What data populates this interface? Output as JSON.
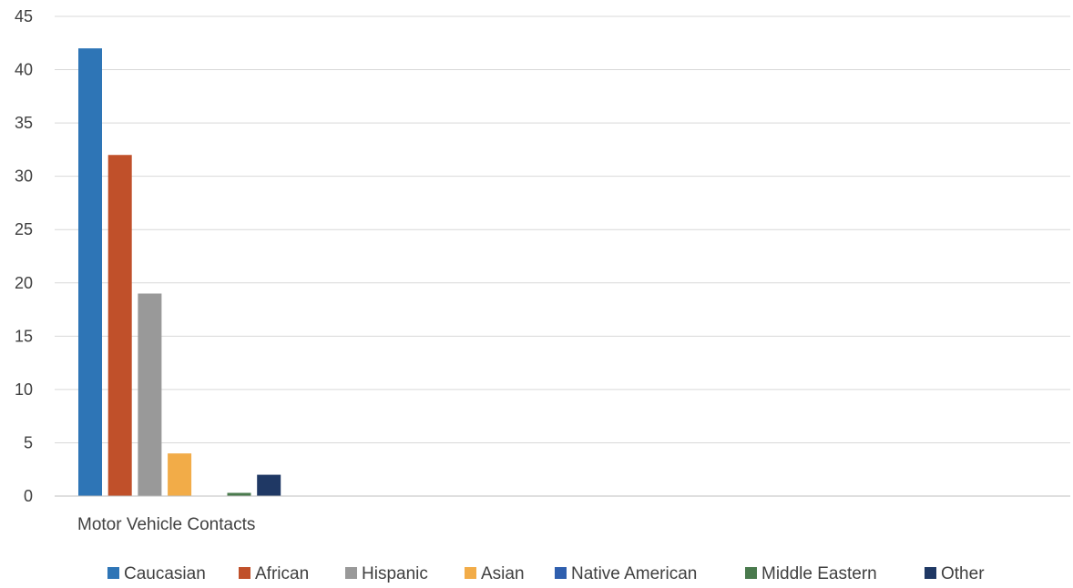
{
  "chart_data": {
    "type": "bar",
    "title": "",
    "xlabel": "",
    "ylabel": "",
    "categories": [
      "Motor Vehicle Contacts"
    ],
    "ylim": [
      0,
      45
    ],
    "y_ticks": [
      0,
      5,
      10,
      15,
      20,
      25,
      30,
      35,
      40,
      45
    ],
    "grid": true,
    "legend_position": "bottom",
    "series": [
      {
        "name": "Caucasian",
        "values": [
          42
        ],
        "color": "#2e75b6"
      },
      {
        "name": "African",
        "values": [
          32
        ],
        "color": "#c0502a"
      },
      {
        "name": "Hispanic",
        "values": [
          19
        ],
        "color": "#999999"
      },
      {
        "name": "Asian",
        "values": [
          4
        ],
        "color": "#f2ac48"
      },
      {
        "name": "Native American",
        "values": [
          0
        ],
        "color": "#2f5fae"
      },
      {
        "name": "Middle Eastern",
        "values": [
          0.3
        ],
        "color": "#4a7a4d"
      },
      {
        "name": "Other",
        "values": [
          2
        ],
        "color": "#1f3864"
      }
    ]
  }
}
